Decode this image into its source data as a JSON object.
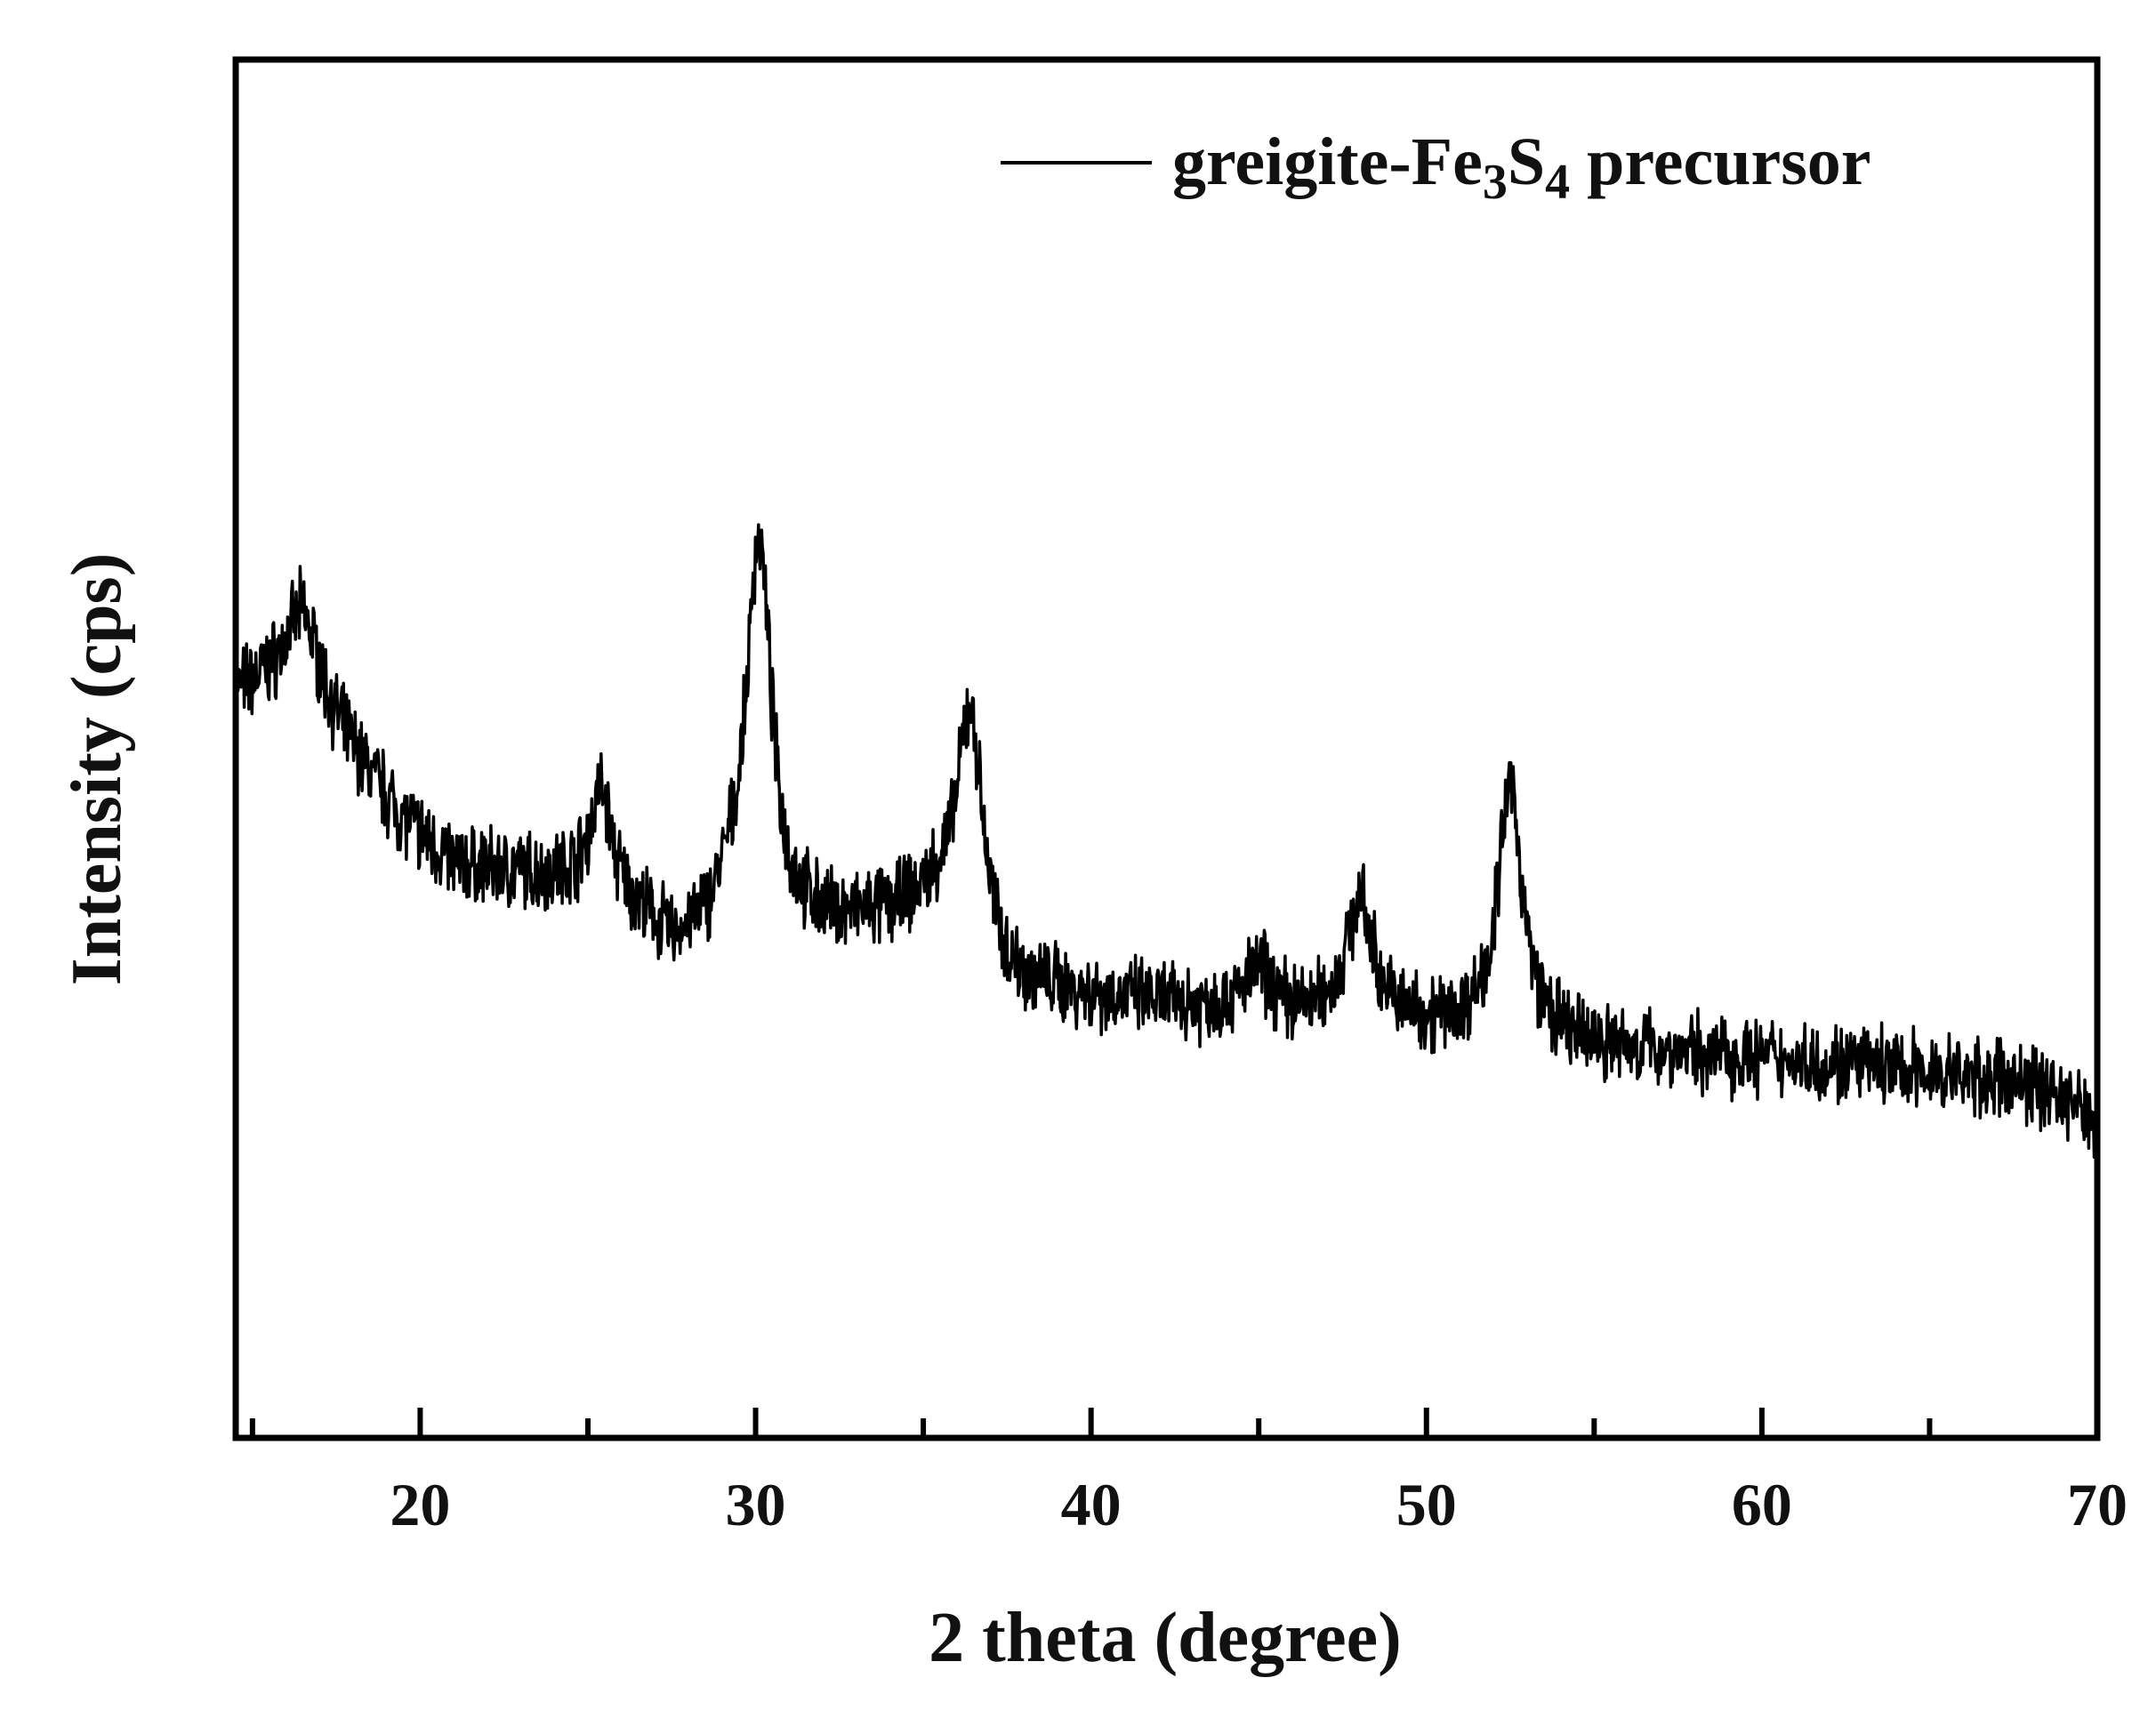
{
  "chart_data": {
    "type": "line",
    "title": "",
    "xlabel": "2 theta (degree)",
    "ylabel": "Intensity (cps)",
    "xlim": [
      14.5,
      70
    ],
    "ylim": [
      0,
      1000
    ],
    "x_ticks": [
      "20",
      "30",
      "40",
      "50",
      "60",
      "70"
    ],
    "x_tick_values": [
      20,
      30,
      40,
      50,
      60,
      70
    ],
    "x_minor_tick_values": [
      15,
      25,
      35,
      45,
      55,
      65
    ],
    "y_ticks_shown": false,
    "grid": false,
    "legend_position": "top-right",
    "series": [
      {
        "name_parts": [
          "greigite-Fe",
          "3",
          "S",
          "4",
          " precursor"
        ],
        "color": "#000000",
        "noisy_profile": true,
        "background": [
          [
            14.5,
            540
          ],
          [
            15.5,
            550
          ],
          [
            16.5,
            560
          ],
          [
            17.5,
            515
          ],
          [
            18.5,
            480
          ],
          [
            19.5,
            448
          ],
          [
            21,
            415
          ],
          [
            23,
            408
          ],
          [
            25,
            405
          ],
          [
            26.5,
            380
          ],
          [
            27.5,
            357
          ],
          [
            28.5,
            365
          ],
          [
            29.2,
            385
          ],
          [
            31,
            370
          ],
          [
            32.5,
            372
          ],
          [
            34,
            378
          ],
          [
            35.5,
            390
          ],
          [
            37.5,
            330
          ],
          [
            40,
            320
          ],
          [
            43,
            312
          ],
          [
            46,
            305
          ],
          [
            49,
            300
          ],
          [
            52,
            294
          ],
          [
            54,
            285
          ],
          [
            57,
            280
          ],
          [
            60,
            275
          ],
          [
            63,
            270
          ],
          [
            66,
            262
          ],
          [
            68.5,
            255
          ],
          [
            70,
            230
          ]
        ],
        "peaks": [
          {
            "x": 16.5,
            "intensity": 40,
            "fwhm": 1.2
          },
          {
            "x": 25.4,
            "intensity": 70,
            "fwhm": 0.7
          },
          {
            "x": 30.1,
            "intensity": 275,
            "fwhm": 0.9
          },
          {
            "x": 36.4,
            "intensity": 165,
            "fwhm": 0.9
          },
          {
            "x": 45.0,
            "intensity": 30,
            "fwhm": 1.0
          },
          {
            "x": 48.0,
            "intensity": 85,
            "fwhm": 1.0
          },
          {
            "x": 52.5,
            "intensity": 178,
            "fwhm": 0.9
          }
        ]
      }
    ]
  }
}
